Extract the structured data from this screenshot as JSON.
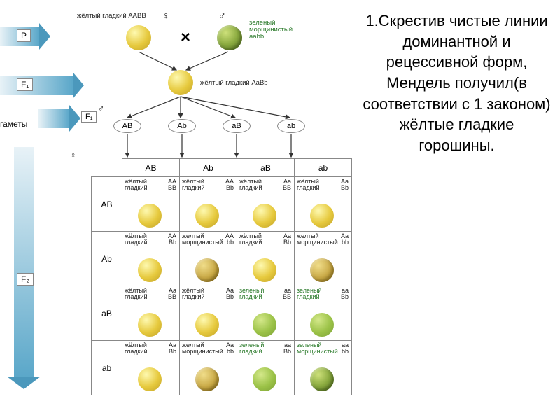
{
  "text_panel": "1.Скрестив чистые линии доминантной и рецессивной форм, Мендель получил(в соответствии с 1 законом) жёлтые гладкие горошины.",
  "generations": {
    "p_label": "P",
    "f1_label": "F₁",
    "f2_label": "F₂",
    "gametes_label": "гаметы"
  },
  "parents": {
    "p1_label": "жёлтый гладкий AABB",
    "p1_color": "yellow-smooth",
    "p2_label": "зеленый\nморщинистый\naabb",
    "p2_color": "green-wrinkled",
    "cross": "×"
  },
  "f1": {
    "label": "жёлтый гладкий AaBb",
    "color": "yellow-smooth"
  },
  "gametes": [
    "AB",
    "Ab",
    "aB",
    "ab"
  ],
  "punnett": {
    "row_headers": [
      "AB",
      "Ab",
      "aB",
      "ab"
    ],
    "col_headers": [
      "AB",
      "Ab",
      "aB",
      "ab"
    ],
    "cells": [
      [
        {
          "ph": "жёлтый\nгладкий",
          "gt": "AA\nBB",
          "col": "yellow-smooth",
          "g": false
        },
        {
          "ph": "жёлтый\nгладкий",
          "gt": "AA\nBb",
          "col": "yellow-smooth",
          "g": false
        },
        {
          "ph": "жёлтый\nгладкий",
          "gt": "Aa\nBB",
          "col": "yellow-smooth",
          "g": false
        },
        {
          "ph": "жёлтый\nгладкий",
          "gt": "Aa\nBb",
          "col": "yellow-smooth",
          "g": false
        }
      ],
      [
        {
          "ph": "жёлтый\nгладкий",
          "gt": "AA\nBb",
          "col": "yellow-smooth",
          "g": false
        },
        {
          "ph": "желтый\nморщинистый",
          "gt": "AA\nbb",
          "col": "yellow-wrinkled",
          "g": false
        },
        {
          "ph": "жёлтый\nгладкий",
          "gt": "Aa\nBb",
          "col": "yellow-smooth",
          "g": false
        },
        {
          "ph": "желтый\nморщинистый",
          "gt": "Aa\nbb",
          "col": "yellow-wrinkled",
          "g": false
        }
      ],
      [
        {
          "ph": "жёлтый\nгладкий",
          "gt": "Aa\nBB",
          "col": "yellow-smooth",
          "g": false
        },
        {
          "ph": "жёлтый\nгладкий",
          "gt": "Aa\nBb",
          "col": "yellow-smooth",
          "g": false
        },
        {
          "ph": "зеленый\nгладкий",
          "gt": "aa\nBB",
          "col": "green-smooth",
          "g": true
        },
        {
          "ph": "зеленый\nгладкий",
          "gt": "aa\nBb",
          "col": "green-smooth",
          "g": true
        }
      ],
      [
        {
          "ph": "жёлтый\nгладкий",
          "gt": "Aa\nBb",
          "col": "yellow-smooth",
          "g": false
        },
        {
          "ph": "желтый\nморщинистый",
          "gt": "Aa\nbb",
          "col": "yellow-wrinkled",
          "g": false
        },
        {
          "ph": "зеленый\nгладкий",
          "gt": "aa\nBb",
          "col": "green-smooth",
          "g": true
        },
        {
          "ph": "зеленый\nморщинистый",
          "gt": "aa\nbb",
          "col": "green-wrinkled",
          "g": true
        }
      ]
    ]
  },
  "colors": {
    "arrow_grad_start": "#e8f2f7",
    "arrow_grad_end": "#5aa7c9",
    "border": "#888888",
    "text": "#000000",
    "green_text": "#2a7a2a"
  },
  "layout": {
    "diagram_w": 510,
    "text_w": 290,
    "text_fontsize": 22,
    "pea_large": 36,
    "pea_cell": 34,
    "grid_cell_w": 82,
    "grid_cell_h": 78
  }
}
